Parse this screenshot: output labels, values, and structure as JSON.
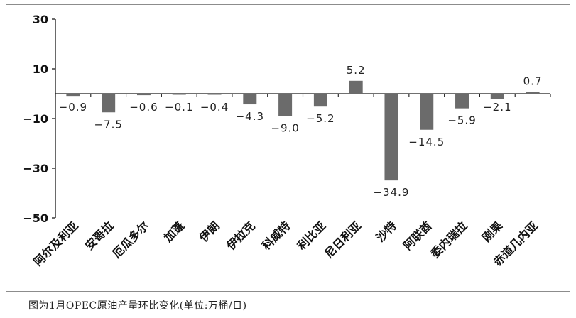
{
  "caption": "图为1月OPEC原油产量环比变化(单位:万桶/日)",
  "colors": {
    "bar": "#6b6b6b",
    "axis": "#1a1a1a",
    "border": "#8c8c8c"
  },
  "chart_data": {
    "type": "bar",
    "title": "",
    "xlabel": "",
    "ylabel": "",
    "ylim": [
      -50,
      30
    ],
    "yticks": [
      30,
      10,
      -10,
      -30,
      -50
    ],
    "ytick_labels": [
      "30",
      "10",
      "−10",
      "−30",
      "−50"
    ],
    "grid": false,
    "legend": "none",
    "categories": [
      "阿尔及利亚",
      "安哥拉",
      "厄瓜多尔",
      "加蓬",
      "伊朗",
      "伊拉克",
      "科威特",
      "利比亚",
      "尼日利亚",
      "沙特",
      "阿联酋",
      "委内瑞拉",
      "刚果",
      "赤道几内亚"
    ],
    "values": [
      -0.9,
      -7.5,
      -0.6,
      -0.1,
      -0.4,
      -4.3,
      -9.0,
      -5.2,
      5.2,
      -34.9,
      -14.5,
      -5.9,
      -2.1,
      0.7
    ],
    "data_labels": [
      "−0.9",
      "−7.5",
      "−0.6",
      "−0.1",
      "−0.4",
      "−4.3",
      "−9.0",
      "−5.2",
      "5.2",
      "−34.9",
      "−14.5",
      "−5.9",
      "−2.1",
      "0.7"
    ]
  }
}
